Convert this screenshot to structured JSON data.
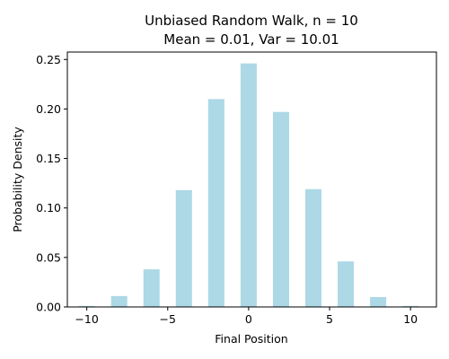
{
  "chart_data": {
    "type": "bar",
    "title_lines": [
      "Unbiased Random Walk, n = 10",
      "Mean = 0.01, Var = 10.01"
    ],
    "xlabel": "Final Position",
    "ylabel": "Probability Density",
    "x": [
      -10,
      -8,
      -6,
      -4,
      -2,
      0,
      2,
      4,
      6,
      8,
      10
    ],
    "values": [
      0.001,
      0.011,
      0.038,
      0.118,
      0.21,
      0.246,
      0.197,
      0.119,
      0.046,
      0.01,
      0.001
    ],
    "bar_width": 1.0,
    "xlim": [
      -11.2,
      11.6
    ],
    "ylim": [
      0,
      0.2575
    ],
    "xticks": [
      -10,
      -5,
      0,
      5,
      10
    ],
    "xtick_labels": [
      "−10",
      "−5",
      "0",
      "5",
      "10"
    ],
    "yticks": [
      0,
      0.05,
      0.1,
      0.15,
      0.2,
      0.25
    ],
    "ytick_labels": [
      "0.00",
      "0.05",
      "0.10",
      "0.15",
      "0.20",
      "0.25"
    ],
    "bar_color": "#add8e6",
    "grid": false,
    "legend": "none"
  }
}
